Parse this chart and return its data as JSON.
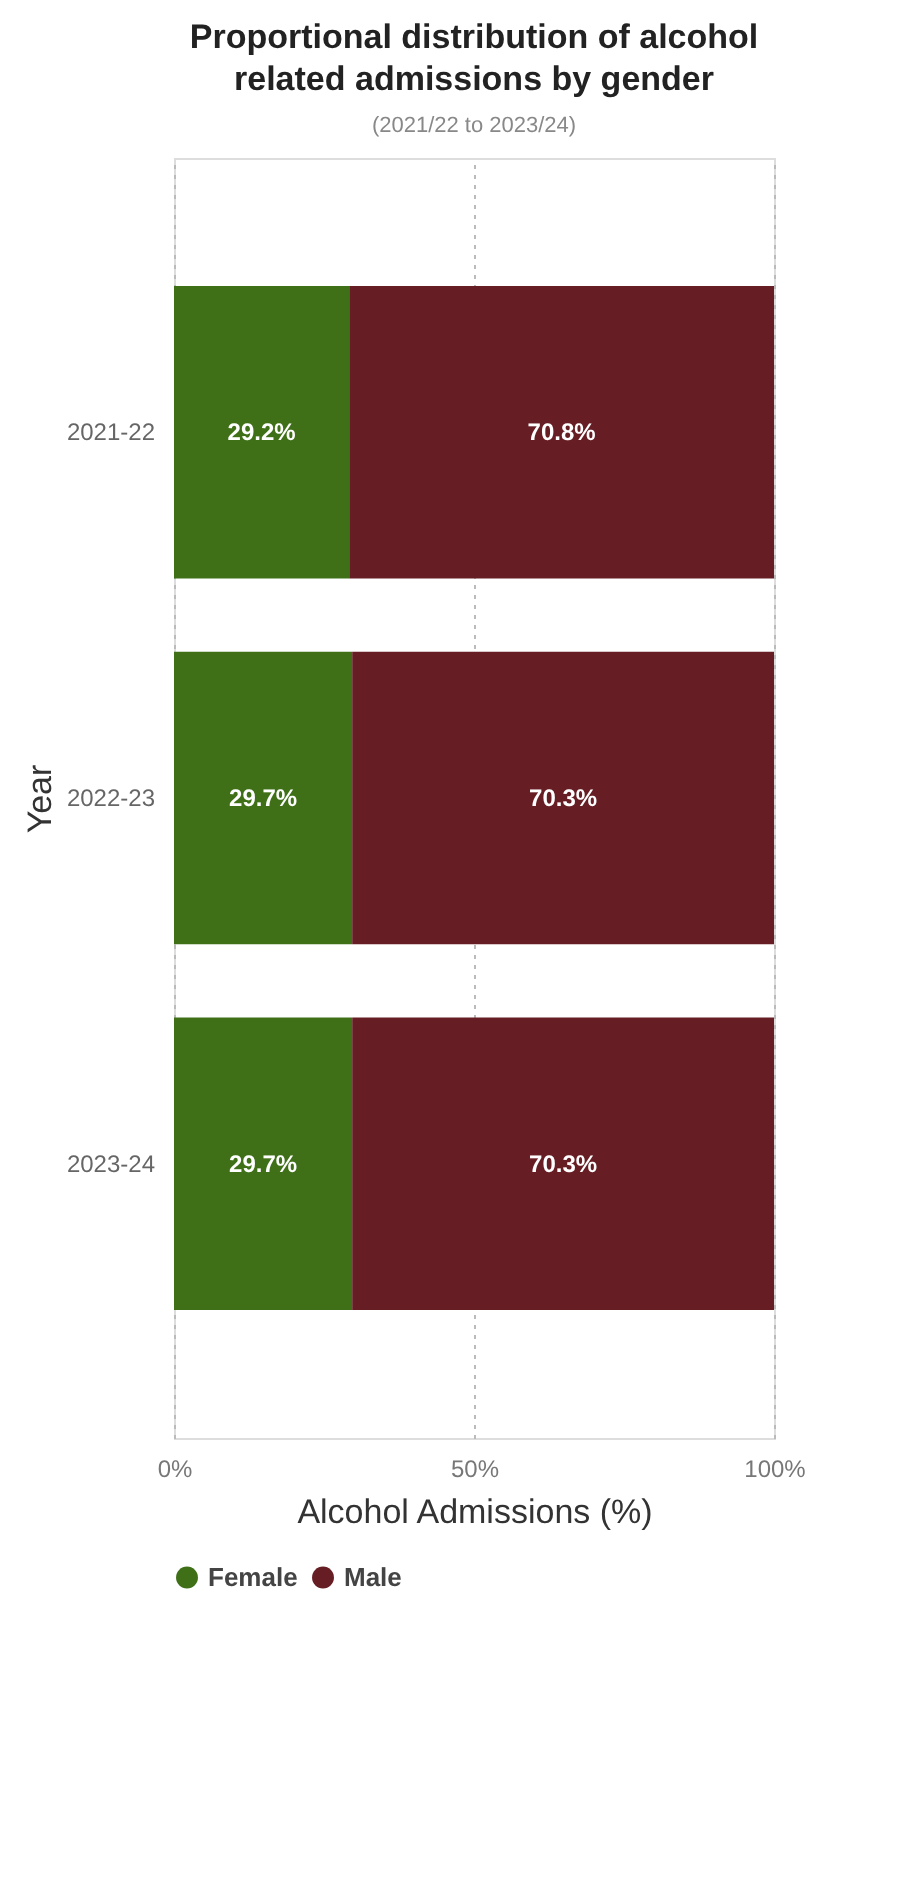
{
  "chart_data": {
    "type": "bar",
    "orientation": "horizontal",
    "stacked": true,
    "title": "Proportional distribution of alcohol related admissions by gender",
    "subtitle": "(2021/22 to 2023/24)",
    "xlabel": "Alcohol Admissions (%)",
    "ylabel": "Year",
    "categories": [
      "2021-22",
      "2022-23",
      "2023-24"
    ],
    "series": [
      {
        "name": "Female",
        "color": "#3f7018",
        "values": [
          29.2,
          29.7,
          29.7
        ],
        "value_labels": [
          "29.2%",
          "29.7%",
          "29.7%"
        ]
      },
      {
        "name": "Male",
        "color": "#661d24",
        "values": [
          70.8,
          70.3,
          70.3
        ],
        "value_labels": [
          "70.8%",
          "70.3%",
          "70.3%"
        ]
      }
    ],
    "xlim": [
      0,
      100
    ],
    "xticks": [
      {
        "value": 0,
        "label": "0%"
      },
      {
        "value": 50,
        "label": "50%"
      },
      {
        "value": 100,
        "label": "100%"
      }
    ],
    "grid": "x",
    "legend": "bottom"
  }
}
